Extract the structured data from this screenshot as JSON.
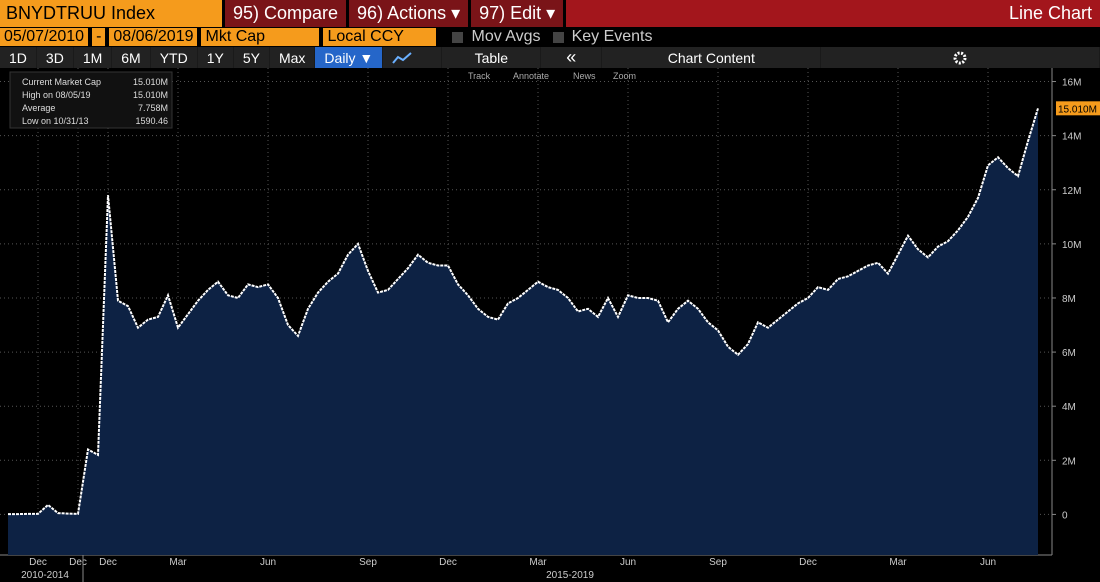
{
  "toolbar": {
    "security": "BNYDTRUU Index",
    "buttons": [
      "95) Compare",
      "96) Actions ▾",
      "97) Edit ▾"
    ],
    "view": "Line Chart",
    "start_date": "05/07/2010",
    "date_sep": "-",
    "end_date": "08/06/2019",
    "field": "Mkt Cap",
    "currency": "Local CCY",
    "checkboxes": [
      "Mov Avgs",
      "Key Events"
    ],
    "periods": [
      "1D",
      "3D",
      "1M",
      "6M",
      "YTD",
      "1Y",
      "5Y",
      "Max"
    ],
    "frequency": "Daily ▼",
    "table": "Table",
    "collapse": "«",
    "content": "Chart Content",
    "tools": [
      "Track",
      "Annotate",
      "News",
      "Zoom"
    ]
  },
  "legend": [
    {
      "label": "Current Market Cap",
      "value": "15.010M"
    },
    {
      "label": "High on 08/05/19",
      "value": "15.010M"
    },
    {
      "label": "Average",
      "value": "7.758M"
    },
    {
      "label": "Low on 10/31/13",
      "value": "1590.46"
    }
  ],
  "chart_data": {
    "type": "area",
    "color": "#ffffff",
    "fill": "#0d2244",
    "grid": true,
    "period_labels": [
      "2010-2014",
      "2015-2019"
    ],
    "categories": [
      null,
      null,
      null,
      "Dec",
      null,
      null,
      null,
      "Dec",
      null,
      null,
      "Dec",
      null,
      null,
      null,
      null,
      null,
      null,
      "Mar",
      null,
      null,
      null,
      null,
      null,
      null,
      null,
      null,
      "Jun",
      null,
      null,
      null,
      null,
      null,
      null,
      null,
      null,
      null,
      "Sep",
      null,
      null,
      null,
      null,
      null,
      null,
      null,
      "Dec",
      null,
      null,
      null,
      null,
      null,
      null,
      null,
      null,
      "Mar",
      null,
      null,
      null,
      null,
      null,
      null,
      null,
      null,
      "Jun",
      null,
      null,
      null,
      null,
      null,
      null,
      null,
      null,
      "Sep",
      null,
      null,
      null,
      null,
      null,
      null,
      null,
      null,
      "Dec",
      null,
      null,
      null,
      null,
      null,
      null,
      null,
      null,
      "Mar",
      null,
      null,
      null,
      null,
      null,
      null,
      null,
      null,
      "Jun",
      null,
      null,
      null,
      null,
      null
    ],
    "values": [
      10000,
      10000,
      20000,
      20000,
      350000,
      50000,
      30000,
      20000,
      2400000,
      2200000,
      11800000,
      7900000,
      7700000,
      6900000,
      7200000,
      7300000,
      8100000,
      6900000,
      7400000,
      7900000,
      8300000,
      8600000,
      8100000,
      8000000,
      8500000,
      8400000,
      8500000,
      8000000,
      7000000,
      6600000,
      7600000,
      8200000,
      8600000,
      8900000,
      9600000,
      10000000,
      9000000,
      8200000,
      8300000,
      8700000,
      9100000,
      9600000,
      9300000,
      9200000,
      9200000,
      8500000,
      8100000,
      7600000,
      7300000,
      7200000,
      7800000,
      8000000,
      8300000,
      8600000,
      8400000,
      8300000,
      8000000,
      7500000,
      7600000,
      7300000,
      8000000,
      7300000,
      8100000,
      8000000,
      8000000,
      7900000,
      7100000,
      7600000,
      7900000,
      7600000,
      7100000,
      6800000,
      6200000,
      5900000,
      6300000,
      7100000,
      6900000,
      7200000,
      7500000,
      7800000,
      8000000,
      8400000,
      8300000,
      8700000,
      8800000,
      9000000,
      9200000,
      9300000,
      8900000,
      9600000,
      10300000,
      9800000,
      9500000,
      9900000,
      10100000,
      10500000,
      11000000,
      11700000,
      12900000,
      13200000,
      12800000,
      12500000,
      13800000,
      15010000
    ],
    "value_labels": [
      null,
      null,
      null,
      null,
      null,
      null,
      null,
      null,
      null,
      null,
      null,
      null,
      null,
      null,
      null,
      null,
      null,
      null,
      null,
      null,
      null,
      null,
      null,
      null,
      null,
      null,
      null,
      null,
      null,
      null,
      null,
      null,
      null,
      null,
      null,
      null,
      null,
      null,
      null,
      null,
      null,
      null,
      null,
      null,
      null,
      null,
      null,
      null,
      null,
      null,
      null,
      null,
      null,
      null,
      null,
      null,
      null,
      null,
      null,
      null,
      null,
      null,
      null,
      null,
      null,
      null,
      null,
      null,
      null,
      null,
      null,
      null,
      null,
      null,
      null,
      null,
      null,
      null,
      null,
      null,
      null,
      null,
      null,
      null,
      null,
      null,
      null,
      null,
      null,
      null,
      null,
      null,
      null,
      null,
      null,
      null,
      null,
      null,
      null,
      null,
      null,
      null,
      null,
      "15.010M"
    ],
    "ylim": [
      -1500000,
      16500000
    ],
    "yticks": [
      0,
      {
        "value": 2000000,
        "label": "2M"
      },
      {
        "value": 4000000,
        "label": "4M"
      },
      {
        "value": 6000000,
        "label": "6M"
      },
      {
        "value": 8000000,
        "label": "8M"
      },
      {
        "value": 10000000,
        "label": "10M"
      },
      {
        "value": 12000000,
        "label": "12M"
      },
      {
        "value": 14000000,
        "label": "14M"
      },
      {
        "value": 16000000,
        "label": "16M"
      }
    ]
  }
}
